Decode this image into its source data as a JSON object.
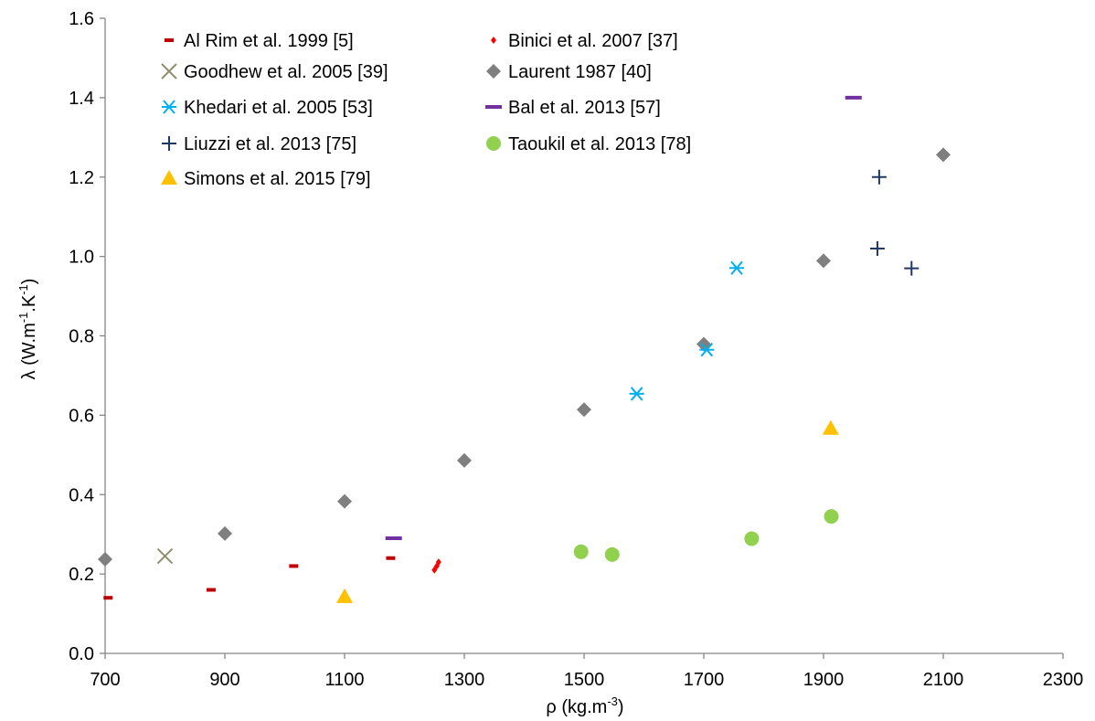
{
  "chart_data": {
    "type": "scatter",
    "xlabel": {
      "base": "ρ (kg.m",
      "sup": "-3",
      "end": ")"
    },
    "ylabel": {
      "parts": [
        "λ (W.m",
        "-1",
        ".K",
        "-1",
        ")"
      ]
    },
    "xlim": [
      700,
      2300
    ],
    "ylim": [
      0,
      1.6
    ],
    "xticks": [
      "700",
      "900",
      "1100",
      "1300",
      "1500",
      "1700",
      "1900",
      "2100",
      "2300"
    ],
    "yticks": [
      "0.0",
      "0.2",
      "0.4",
      "0.6",
      "0.8",
      "1.0",
      "1.2",
      "1.4",
      "1.6"
    ],
    "grid": false,
    "legend": "top-left, inside plot, two columns",
    "series": [
      {
        "name": "Al Rim et al. 1999 [5]",
        "marker": "dash",
        "color": "#C00000",
        "points": [
          [
            705,
            0.14
          ],
          [
            877,
            0.16
          ],
          [
            1015,
            0.22
          ],
          [
            1177,
            0.24
          ]
        ]
      },
      {
        "name": "Binici et al. 2007 [37]",
        "marker": "small-diamond",
        "color": "#FF0000",
        "points": [
          [
            1250,
            0.21
          ],
          [
            1254,
            0.22
          ],
          [
            1257,
            0.23
          ]
        ]
      },
      {
        "name": "Goodhew et al.  2005 [39]",
        "marker": "x",
        "color": "#8F8F6F",
        "points": [
          [
            800,
            0.245
          ]
        ]
      },
      {
        "name": "Laurent 1987 [40]",
        "marker": "diamond",
        "color": "#7F7F7F",
        "points": [
          [
            700,
            0.237
          ],
          [
            900,
            0.302
          ],
          [
            1100,
            0.383
          ],
          [
            1300,
            0.486
          ],
          [
            1500,
            0.614
          ],
          [
            1700,
            0.779
          ],
          [
            1900,
            0.989
          ],
          [
            2100,
            1.256
          ]
        ]
      },
      {
        "name": "Khedari et al. 2005 [53]",
        "marker": "asterisk",
        "color": "#00B0F0",
        "points": [
          [
            1588,
            0.654
          ],
          [
            1705,
            0.765
          ],
          [
            1755,
            0.971
          ]
        ]
      },
      {
        "name": "Bal et al. 2013 [57]",
        "marker": "long-dash",
        "color": "#7030A0",
        "points": [
          [
            1182,
            0.29
          ],
          [
            1950,
            1.4
          ]
        ]
      },
      {
        "name": "Liuzzi et al. 2013 [75]",
        "marker": "plus",
        "color": "#1F3864",
        "points": [
          [
            1993,
            1.2
          ],
          [
            1990,
            1.02
          ],
          [
            2047,
            0.97
          ]
        ]
      },
      {
        "name": "Taoukil et al. 2013 [78]",
        "marker": "circle",
        "color": "#92D050",
        "points": [
          [
            1495,
            0.256
          ],
          [
            1547,
            0.249
          ],
          [
            1780,
            0.289
          ],
          [
            1913,
            0.345
          ]
        ]
      },
      {
        "name": "Simons et al. 2015 [79]",
        "marker": "triangle",
        "color": "#FFC000",
        "points": [
          [
            1100,
            0.143
          ],
          [
            1912,
            0.567
          ]
        ]
      }
    ]
  }
}
